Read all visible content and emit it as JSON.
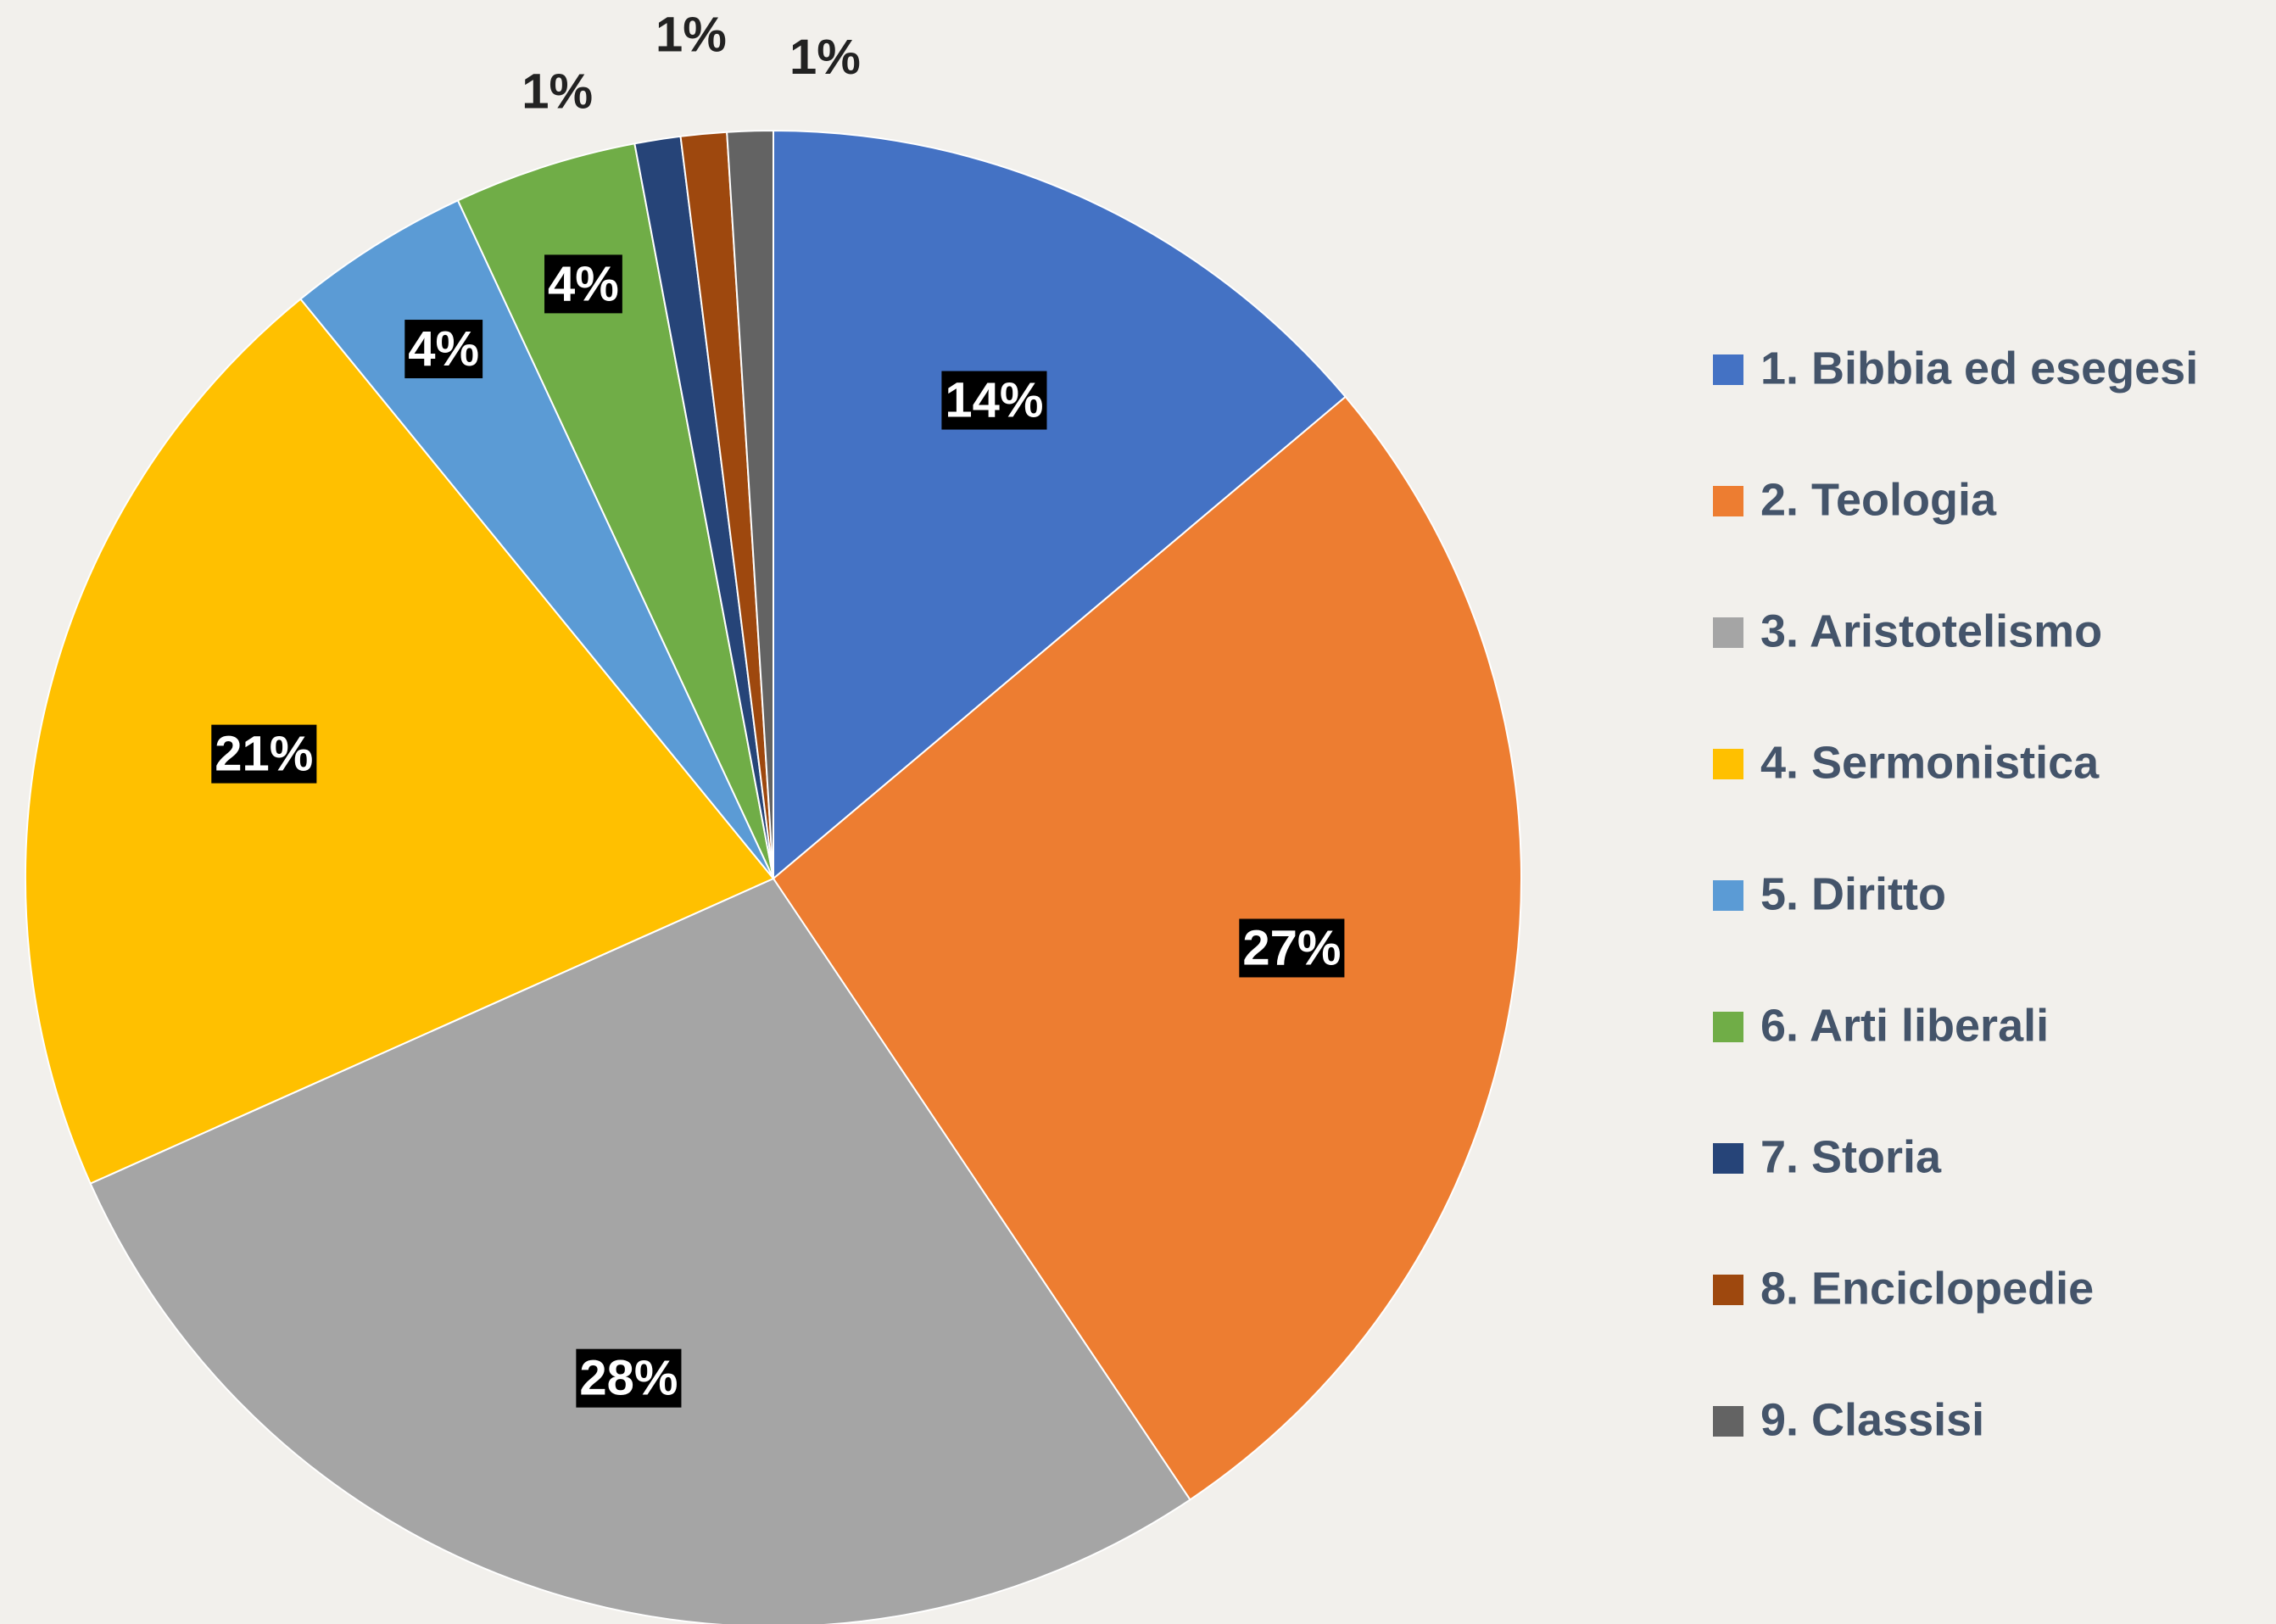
{
  "chart_data": {
    "type": "pie",
    "categories": [
      "1. Bibbia ed esegesi",
      "2. Teologia",
      "3. Aristotelismo",
      "4. Sermonistica",
      "5. Diritto",
      "6. Arti liberali",
      "7. Storia",
      "8. Enciclopedie",
      "9. Classisi"
    ],
    "values": [
      14,
      27,
      28,
      21,
      4,
      4,
      1,
      1,
      1
    ],
    "value_labels": [
      "14%",
      "27%",
      "28%",
      "21%",
      "4%",
      "4%",
      "1%",
      "1%",
      "1%"
    ],
    "colors": [
      "#4472c4",
      "#ed7d31",
      "#a5a5a5",
      "#ffc000",
      "#5b9bd5",
      "#70ad47",
      "#264478",
      "#9e480e",
      "#636363"
    ],
    "legend": "right"
  }
}
